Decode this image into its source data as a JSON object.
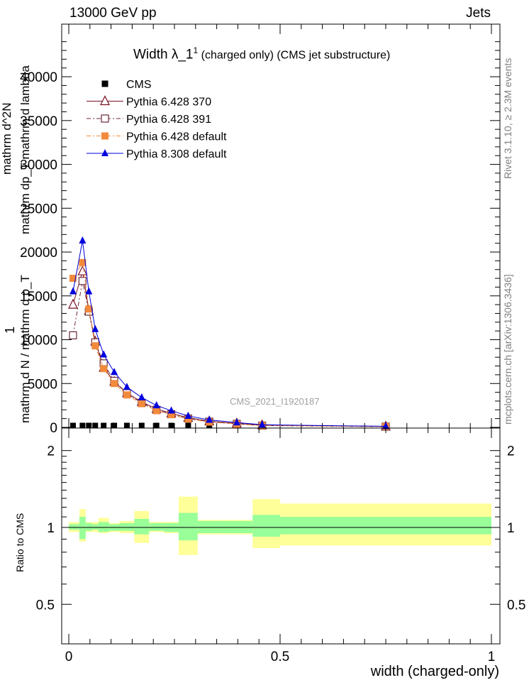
{
  "header": {
    "left": "13000 GeV pp",
    "right": "Jets"
  },
  "plot_title": {
    "main": "Width λ_1",
    "sup": "1",
    "rest": " (charged only) (CMS jet substructure)"
  },
  "side_labels": {
    "rivet": "Rivet 3.1.10, ≥ 2.3M events",
    "mcplots": "mcplots.cern.ch [arXiv:1306.3436]"
  },
  "analysis_id": "CMS_2021_I1920187",
  "colors": {
    "cms": "#000000",
    "p6_370": "#7a1020",
    "p6_391": "#6b2a3a",
    "p6_default": "#f28a3c",
    "p8_default": "#0000dd",
    "band_inner": "#99ff99",
    "band_outer": "#ffff99"
  },
  "chart_data": [
    {
      "type": "line",
      "title": "Width λ_1^1 (charged only) (CMS jet substructure)",
      "ylabel_top": "1",
      "ylabel_frac_line1": "mathrm d^2N",
      "ylabel_frac_line2": "mathrm dp_T mathrm d lambda",
      "ylabel_bottom": "mathrm d N / mathrm d p_T",
      "y_ticks": [
        "0",
        "5000",
        "10000",
        "15000",
        "20000",
        "25000",
        "30000",
        "35000",
        "40000"
      ],
      "ylim": [
        0,
        46000
      ],
      "xlim": [
        0,
        1
      ],
      "x": [
        0.01,
        0.0325,
        0.0475,
        0.0625,
        0.0825,
        0.1075,
        0.1375,
        0.1725,
        0.2075,
        0.2425,
        0.2825,
        0.3325,
        0.3975,
        0.4575,
        0.75
      ],
      "series": [
        {
          "name": "CMS",
          "marker": "square",
          "values": [
            200,
            200,
            200,
            200,
            200,
            200,
            200,
            200,
            200,
            200,
            200,
            200,
            200,
            200,
            200
          ]
        },
        {
          "name": "Pythia 6.428 370",
          "marker": "triangle-open",
          "values": [
            14000,
            17800,
            13300,
            9800,
            6800,
            5200,
            3900,
            2900,
            2100,
            1600,
            1100,
            700,
            450,
            250,
            100
          ]
        },
        {
          "name": "Pythia 6.428 391",
          "marker": "square-open",
          "values": [
            10500,
            16700,
            13200,
            9700,
            7300,
            5300,
            3900,
            2800,
            2000,
            1500,
            1000,
            650,
            400,
            200,
            80
          ]
        },
        {
          "name": "Pythia 6.428 default",
          "marker": "square",
          "values": [
            17000,
            18800,
            13500,
            9300,
            6700,
            5000,
            3700,
            2700,
            1900,
            1450,
            950,
            600,
            380,
            200,
            80
          ]
        },
        {
          "name": "Pythia 8.308 default",
          "marker": "triangle",
          "values": [
            15500,
            21300,
            15500,
            11200,
            8300,
            6300,
            4600,
            3400,
            2500,
            1900,
            1300,
            850,
            550,
            300,
            120
          ]
        }
      ]
    },
    {
      "type": "area",
      "ylabel": "Ratio to CMS",
      "xlabel": "width (charged-only)",
      "x_ticks": [
        "0",
        "0.5",
        "1"
      ],
      "y_ticks": [
        "0.5",
        "1",
        "2"
      ],
      "ylim": [
        0.35,
        2.45
      ],
      "log_y": true,
      "bins": [
        [
          0,
          0.025
        ],
        [
          0.025,
          0.04
        ],
        [
          0.04,
          0.055
        ],
        [
          0.055,
          0.07
        ],
        [
          0.07,
          0.095
        ],
        [
          0.095,
          0.12
        ],
        [
          0.12,
          0.155
        ],
        [
          0.155,
          0.19
        ],
        [
          0.19,
          0.225
        ],
        [
          0.225,
          0.26
        ],
        [
          0.26,
          0.305
        ],
        [
          0.305,
          0.36
        ],
        [
          0.36,
          0.435
        ],
        [
          0.435,
          0.5
        ],
        [
          0.5,
          1.0
        ]
      ],
      "inner_band": [
        [
          0.98,
          1.03
        ],
        [
          0.9,
          1.1
        ],
        [
          0.97,
          1.04
        ],
        [
          0.98,
          1.03
        ],
        [
          0.96,
          1.05
        ],
        [
          0.97,
          1.03
        ],
        [
          0.97,
          1.04
        ],
        [
          0.94,
          1.08
        ],
        [
          0.97,
          1.04
        ],
        [
          0.96,
          1.04
        ],
        [
          0.89,
          1.14
        ],
        [
          0.95,
          1.06
        ],
        [
          0.95,
          1.06
        ],
        [
          0.92,
          1.12
        ],
        [
          0.94,
          1.1
        ]
      ],
      "outer_band": [
        [
          0.96,
          1.05
        ],
        [
          0.88,
          1.18
        ],
        [
          0.96,
          1.05
        ],
        [
          0.96,
          1.05
        ],
        [
          0.95,
          1.09
        ],
        [
          0.96,
          1.04
        ],
        [
          0.95,
          1.06
        ],
        [
          0.87,
          1.16
        ],
        [
          0.96,
          1.05
        ],
        [
          0.95,
          1.05
        ],
        [
          0.78,
          1.32
        ],
        [
          0.94,
          1.07
        ],
        [
          0.94,
          1.07
        ],
        [
          0.83,
          1.29
        ],
        [
          0.85,
          1.24
        ]
      ]
    }
  ]
}
